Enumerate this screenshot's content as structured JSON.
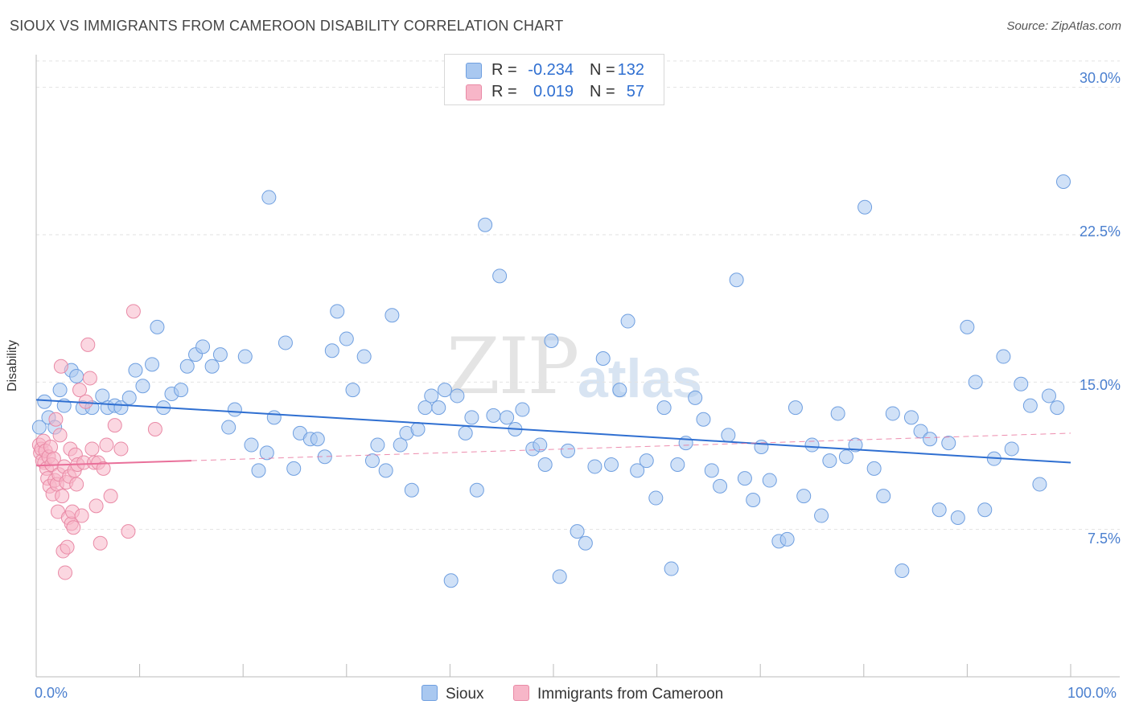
{
  "title": "SIOUX VS IMMIGRANTS FROM CAMEROON DISABILITY CORRELATION CHART",
  "source": "Source: ZipAtlas.com",
  "watermark": {
    "part1": "ZIP",
    "part2": "atlas"
  },
  "stats": [
    {
      "r_label": "R =",
      "r_value": "-0.234",
      "n_label": "N =",
      "n_value": "132",
      "color": "#a9c8f0",
      "border": "#6f9fe0"
    },
    {
      "r_label": "R =",
      "r_value": "0.019",
      "n_label": "N =",
      "n_value": "57",
      "color": "#f7b6c8",
      "border": "#e98aa6"
    }
  ],
  "legend": [
    {
      "label": "Sioux",
      "color": "#a9c8f0",
      "border": "#6f9fe0"
    },
    {
      "label": "Immigrants from Cameroon",
      "color": "#f7b6c8",
      "border": "#e98aa6"
    }
  ],
  "chart_data": {
    "type": "scatter",
    "title": "SIOUX VS IMMIGRANTS FROM CAMEROON DISABILITY CORRELATION CHART",
    "xlabel": "",
    "ylabel": "Disability",
    "xlim": [
      0,
      100
    ],
    "ylim": [
      0,
      31.5
    ],
    "y_ticks": [
      {
        "value": 7.5,
        "label": "7.5%"
      },
      {
        "value": 15.0,
        "label": "15.0%"
      },
      {
        "value": 22.5,
        "label": "22.5%"
      },
      {
        "value": 30.0,
        "label": "30.0%"
      }
    ],
    "x_tick_labels": [
      {
        "value": 0,
        "label": "0.0%"
      },
      {
        "value": 100,
        "label": "100.0%"
      }
    ],
    "x_minor_ticks": [
      10,
      20,
      30,
      40,
      50,
      60,
      70,
      80,
      90,
      100
    ],
    "grid": "horizontal dashed",
    "series": [
      {
        "name": "Sioux",
        "color": "#a9c8f0",
        "stroke": "#6f9fe0",
        "trend": {
          "x": [
            0,
            100
          ],
          "y": [
            14.1,
            10.9
          ],
          "style": "solid",
          "color": "#2f6fd1"
        },
        "points": [
          [
            0.3,
            12.7
          ],
          [
            0.8,
            14.0
          ],
          [
            1.2,
            13.2
          ],
          [
            1.8,
            12.7
          ],
          [
            2.3,
            14.6
          ],
          [
            2.7,
            13.8
          ],
          [
            3.4,
            15.6
          ],
          [
            3.9,
            15.3
          ],
          [
            4.5,
            13.7
          ],
          [
            5.4,
            13.7
          ],
          [
            6.4,
            14.3
          ],
          [
            6.9,
            13.7
          ],
          [
            7.6,
            13.8
          ],
          [
            8.2,
            13.7
          ],
          [
            9.0,
            14.2
          ],
          [
            9.6,
            15.6
          ],
          [
            10.3,
            14.8
          ],
          [
            11.2,
            15.9
          ],
          [
            11.7,
            17.8
          ],
          [
            12.3,
            13.7
          ],
          [
            13.1,
            14.4
          ],
          [
            14.0,
            14.6
          ],
          [
            14.6,
            15.8
          ],
          [
            15.4,
            16.4
          ],
          [
            16.1,
            16.8
          ],
          [
            17.0,
            15.8
          ],
          [
            17.8,
            16.4
          ],
          [
            18.6,
            12.7
          ],
          [
            19.2,
            13.6
          ],
          [
            20.2,
            16.3
          ],
          [
            20.8,
            11.8
          ],
          [
            21.5,
            10.5
          ],
          [
            22.3,
            11.4
          ],
          [
            22.5,
            24.4
          ],
          [
            23.0,
            13.2
          ],
          [
            24.1,
            17.0
          ],
          [
            24.9,
            10.6
          ],
          [
            25.5,
            12.4
          ],
          [
            26.5,
            12.1
          ],
          [
            27.2,
            12.1
          ],
          [
            27.9,
            11.2
          ],
          [
            28.6,
            16.6
          ],
          [
            29.1,
            18.6
          ],
          [
            30.0,
            17.2
          ],
          [
            30.6,
            14.6
          ],
          [
            31.7,
            16.3
          ],
          [
            32.5,
            11.0
          ],
          [
            33.0,
            11.8
          ],
          [
            33.8,
            10.5
          ],
          [
            34.4,
            18.4
          ],
          [
            35.2,
            11.8
          ],
          [
            35.8,
            12.4
          ],
          [
            36.3,
            9.5
          ],
          [
            36.9,
            12.6
          ],
          [
            37.6,
            13.7
          ],
          [
            38.2,
            14.3
          ],
          [
            38.9,
            13.7
          ],
          [
            39.5,
            14.6
          ],
          [
            40.1,
            4.9
          ],
          [
            40.7,
            14.3
          ],
          [
            41.5,
            12.4
          ],
          [
            42.1,
            13.2
          ],
          [
            42.6,
            9.5
          ],
          [
            43.4,
            23.0
          ],
          [
            44.2,
            13.3
          ],
          [
            44.8,
            20.4
          ],
          [
            45.5,
            13.2
          ],
          [
            46.3,
            12.6
          ],
          [
            47.0,
            13.6
          ],
          [
            48.0,
            11.6
          ],
          [
            48.7,
            11.8
          ],
          [
            49.2,
            10.8
          ],
          [
            49.8,
            17.1
          ],
          [
            50.6,
            5.1
          ],
          [
            51.4,
            11.5
          ],
          [
            52.3,
            7.4
          ],
          [
            53.1,
            6.8
          ],
          [
            54.0,
            10.7
          ],
          [
            54.8,
            16.2
          ],
          [
            55.6,
            10.8
          ],
          [
            56.4,
            14.6
          ],
          [
            57.2,
            18.1
          ],
          [
            58.1,
            10.5
          ],
          [
            59.0,
            11.0
          ],
          [
            59.9,
            9.1
          ],
          [
            60.7,
            13.7
          ],
          [
            61.4,
            5.5
          ],
          [
            62.0,
            10.8
          ],
          [
            62.8,
            11.9
          ],
          [
            63.7,
            14.2
          ],
          [
            64.5,
            13.1
          ],
          [
            65.3,
            10.5
          ],
          [
            66.1,
            9.7
          ],
          [
            66.9,
            12.3
          ],
          [
            67.7,
            20.2
          ],
          [
            68.5,
            10.1
          ],
          [
            69.3,
            9.0
          ],
          [
            70.1,
            11.7
          ],
          [
            70.9,
            10.0
          ],
          [
            71.8,
            6.9
          ],
          [
            72.6,
            7.0
          ],
          [
            73.4,
            13.7
          ],
          [
            74.2,
            9.2
          ],
          [
            75.0,
            11.8
          ],
          [
            75.9,
            8.2
          ],
          [
            76.7,
            11.0
          ],
          [
            77.5,
            13.4
          ],
          [
            78.3,
            11.2
          ],
          [
            79.2,
            11.8
          ],
          [
            80.1,
            23.9
          ],
          [
            81.0,
            10.6
          ],
          [
            81.9,
            9.2
          ],
          [
            82.8,
            13.4
          ],
          [
            83.7,
            5.4
          ],
          [
            84.6,
            13.2
          ],
          [
            85.5,
            12.5
          ],
          [
            86.4,
            12.1
          ],
          [
            87.3,
            8.5
          ],
          [
            88.2,
            11.9
          ],
          [
            89.1,
            8.1
          ],
          [
            90.0,
            17.8
          ],
          [
            90.8,
            15.0
          ],
          [
            91.7,
            8.5
          ],
          [
            92.6,
            11.1
          ],
          [
            93.5,
            16.3
          ],
          [
            94.3,
            11.6
          ],
          [
            95.2,
            14.9
          ],
          [
            96.1,
            13.8
          ],
          [
            97.0,
            9.8
          ],
          [
            97.9,
            14.3
          ],
          [
            98.7,
            13.7
          ],
          [
            99.3,
            25.2
          ]
        ]
      },
      {
        "name": "Immigrants from Cameroon",
        "color": "#f7b6c8",
        "stroke": "#e98aa6",
        "trend": {
          "x": [
            0,
            15,
            100
          ],
          "y": [
            10.75,
            11.0,
            12.4
          ],
          "style": "solid-then-dashed",
          "color": "#e9709a"
        },
        "points": [
          [
            0.3,
            11.8
          ],
          [
            0.4,
            11.4
          ],
          [
            0.5,
            11.6
          ],
          [
            0.6,
            11.0
          ],
          [
            0.7,
            12.0
          ],
          [
            0.8,
            10.9
          ],
          [
            0.9,
            11.5
          ],
          [
            1.0,
            10.6
          ],
          [
            1.1,
            10.1
          ],
          [
            1.2,
            11.2
          ],
          [
            1.3,
            9.7
          ],
          [
            1.4,
            11.7
          ],
          [
            1.5,
            10.8
          ],
          [
            1.6,
            9.3
          ],
          [
            1.7,
            11.1
          ],
          [
            1.8,
            10.0
          ],
          [
            1.9,
            13.1
          ],
          [
            2.0,
            9.8
          ],
          [
            2.1,
            8.4
          ],
          [
            2.2,
            10.3
          ],
          [
            2.3,
            12.3
          ],
          [
            2.4,
            15.8
          ],
          [
            2.5,
            9.2
          ],
          [
            2.6,
            6.4
          ],
          [
            2.7,
            10.7
          ],
          [
            2.8,
            5.3
          ],
          [
            2.9,
            9.9
          ],
          [
            3.0,
            6.6
          ],
          [
            3.1,
            8.1
          ],
          [
            3.2,
            10.2
          ],
          [
            3.3,
            11.6
          ],
          [
            3.4,
            7.8
          ],
          [
            3.5,
            8.4
          ],
          [
            3.6,
            7.6
          ],
          [
            3.7,
            10.5
          ],
          [
            3.8,
            11.3
          ],
          [
            3.9,
            9.8
          ],
          [
            4.0,
            10.8
          ],
          [
            4.2,
            14.6
          ],
          [
            4.4,
            8.2
          ],
          [
            4.6,
            10.9
          ],
          [
            4.8,
            14.0
          ],
          [
            5.0,
            16.9
          ],
          [
            5.2,
            15.2
          ],
          [
            5.4,
            11.6
          ],
          [
            5.6,
            10.9
          ],
          [
            5.8,
            8.7
          ],
          [
            6.0,
            10.9
          ],
          [
            6.2,
            6.8
          ],
          [
            6.5,
            10.6
          ],
          [
            6.8,
            11.8
          ],
          [
            7.2,
            9.2
          ],
          [
            7.6,
            12.8
          ],
          [
            8.2,
            11.6
          ],
          [
            8.9,
            7.4
          ],
          [
            9.4,
            18.6
          ],
          [
            11.5,
            12.6
          ]
        ]
      }
    ]
  }
}
